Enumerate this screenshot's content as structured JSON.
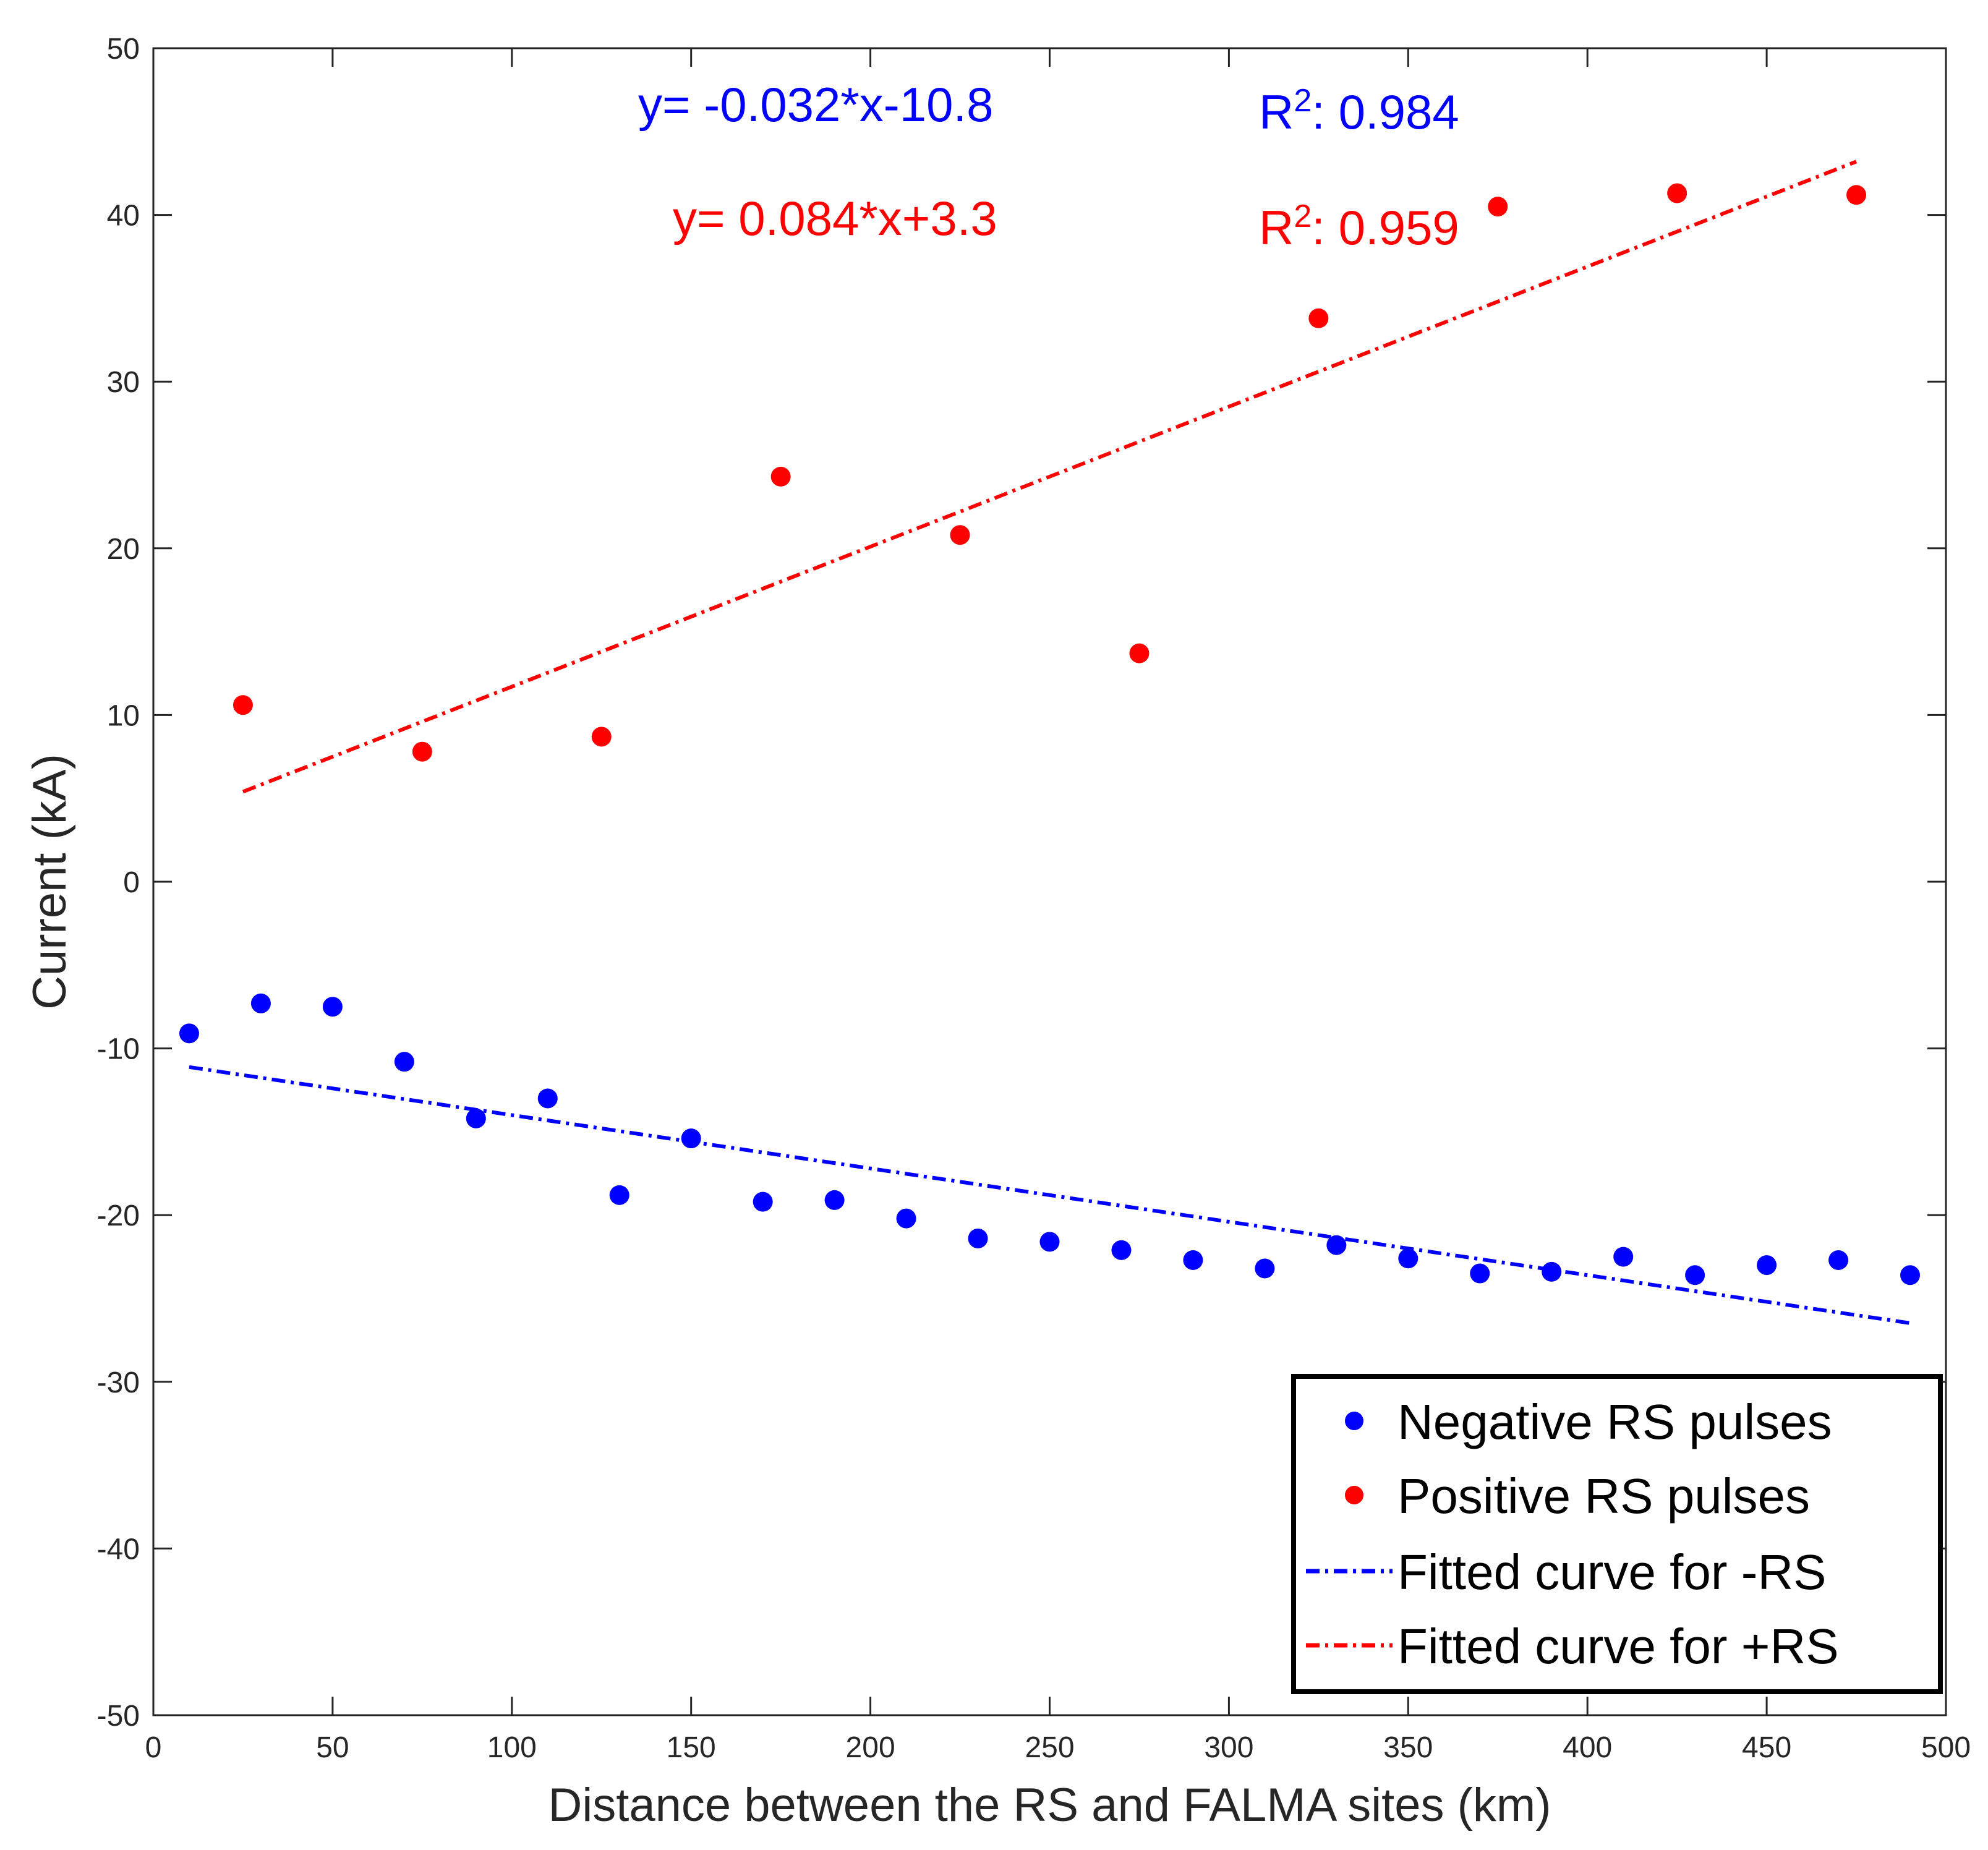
{
  "chart_data": {
    "type": "scatter",
    "xlabel": "Distance between the RS and FALMA sites (km)",
    "ylabel": "Current (kA)",
    "xlim": [
      0,
      500
    ],
    "ylim": [
      -50,
      50
    ],
    "xticks": [
      0,
      50,
      100,
      150,
      200,
      250,
      300,
      350,
      400,
      450,
      500
    ],
    "yticks": [
      -50,
      -40,
      -30,
      -20,
      -10,
      0,
      10,
      20,
      30,
      40,
      50
    ],
    "xtick_labels": [
      "0",
      "50",
      "100",
      "150",
      "200",
      "250",
      "300",
      "350",
      "400",
      "450",
      "500"
    ],
    "ytick_labels": [
      "-50",
      "-40",
      "-30",
      "-20",
      "-10",
      "0",
      "10",
      "20",
      "30",
      "40",
      "50"
    ],
    "grid": false,
    "legend_position": "bottom-right",
    "series": [
      {
        "name": "Negative RS pulses",
        "kind": "scatter",
        "color": "#0000ff",
        "x": [
          10,
          30,
          50,
          70,
          90,
          110,
          130,
          150,
          170,
          190,
          210,
          230,
          250,
          270,
          290,
          310,
          330,
          350,
          370,
          390,
          410,
          430,
          450,
          470,
          490
        ],
        "y": [
          -9.1,
          -7.3,
          -7.5,
          -10.8,
          -14.2,
          -13.0,
          -18.8,
          -15.4,
          -19.2,
          -19.1,
          -20.2,
          -21.4,
          -21.6,
          -22.1,
          -22.7,
          -23.2,
          -21.8,
          -22.6,
          -23.5,
          -23.4,
          -22.5,
          -23.6,
          -23.0,
          -22.7,
          -23.6
        ]
      },
      {
        "name": "Positive RS pulses",
        "kind": "scatter",
        "color": "#ff0000",
        "x": [
          25,
          75,
          125,
          175,
          225,
          275,
          325,
          375,
          425,
          475
        ],
        "y": [
          10.6,
          7.8,
          8.7,
          24.3,
          20.8,
          13.7,
          33.8,
          40.5,
          41.3,
          41.2
        ]
      },
      {
        "name": "Fitted curve for -RS",
        "kind": "line",
        "color": "#0000ff",
        "dash": "dash-dot",
        "x": [
          10,
          490
        ],
        "y": [
          -11.12,
          -26.48
        ]
      },
      {
        "name": "Fitted curve for +RS",
        "kind": "line",
        "color": "#ff0000",
        "dash": "dash-dot",
        "x": [
          25,
          475
        ],
        "y": [
          5.4,
          43.2
        ]
      }
    ],
    "annotations": [
      {
        "text": "y= -0.032*x-10.8",
        "color": "#0000ff"
      },
      {
        "text": "y= 0.084*x+3.3",
        "color": "#ff0000"
      },
      {
        "text_base": "R",
        "superscript": "2",
        "text_value": ": 0.984",
        "color": "#0000ff"
      },
      {
        "text_base": "R",
        "superscript": "2",
        "text_value": ": 0.959",
        "color": "#ff0000"
      }
    ]
  }
}
